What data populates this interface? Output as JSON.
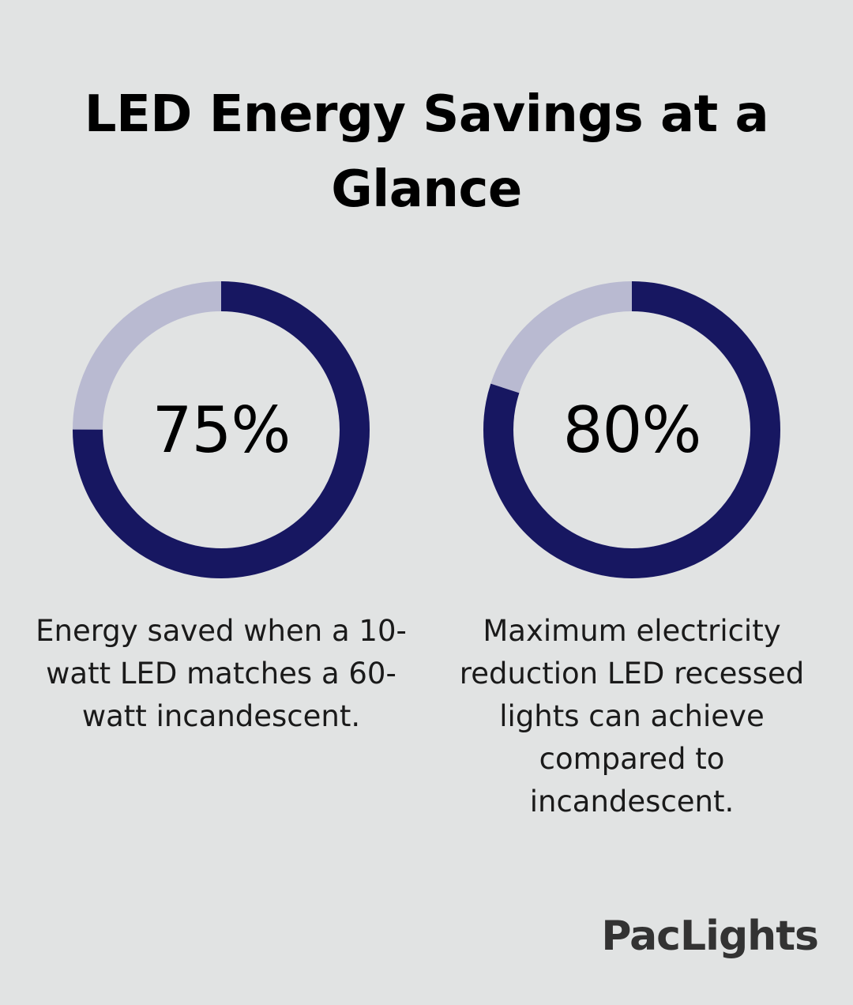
{
  "title_lines": [
    "LED Energy Savings at a",
    "Glance"
  ],
  "colors": {
    "background": "#e1e3e3",
    "filled": "#171761",
    "remaining": "#b9bad1"
  },
  "chart_data": [
    {
      "type": "pie",
      "value": 75,
      "unit": "%",
      "label": "75%",
      "caption_lines": [
        "Energy saved when a 10-",
        "watt LED matches a 60-",
        "watt incandescent."
      ]
    },
    {
      "type": "pie",
      "value": 80,
      "unit": "%",
      "label": "80%",
      "caption_lines": [
        "Maximum electricity",
        "reduction LED recessed",
        "lights can achieve",
        "compared to",
        "incandescent."
      ]
    }
  ],
  "brand": {
    "logo_text": "PacLights"
  }
}
